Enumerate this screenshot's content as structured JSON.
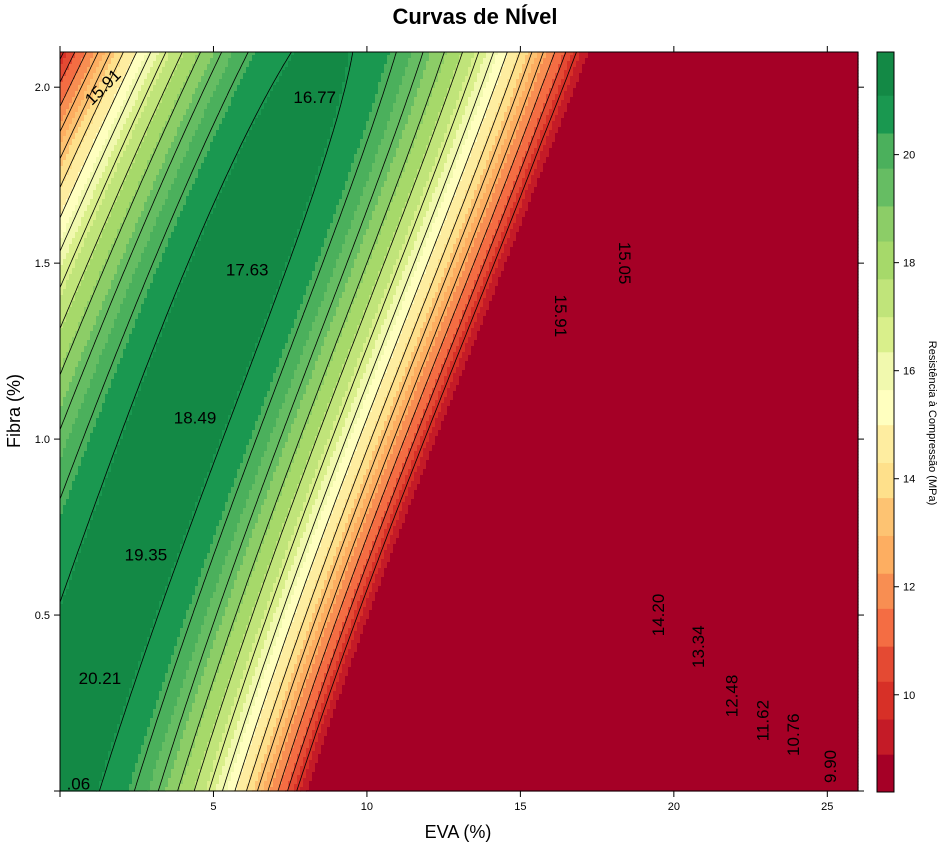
{
  "chart_data": {
    "type": "filled-contour",
    "title": "Curvas de NÍvel",
    "xlabel": "EVA (%)",
    "ylabel": "Fibra (%)",
    "colorbar_label": "Resistência à Compressão (MPa)",
    "xlim": [
      0,
      26
    ],
    "ylim": [
      0,
      2.1
    ],
    "x_ticks": [
      5,
      10,
      15,
      20,
      25
    ],
    "y_ticks": [
      0.5,
      1.0,
      1.5,
      2.0
    ],
    "y_tick_labels": [
      "0.5",
      "1.0",
      "1.5",
      "2.0"
    ],
    "colorbar_range": [
      8.2,
      21.9
    ],
    "colorbar_ticks": [
      10,
      12,
      14,
      16,
      18,
      20
    ],
    "color_levels": [
      8.2,
      8.9,
      9.55,
      10.25,
      10.9,
      11.6,
      12.25,
      12.95,
      13.65,
      14.3,
      15.0,
      15.65,
      16.35,
      17.0,
      17.7,
      18.4,
      19.05,
      19.75,
      20.4,
      21.1,
      21.9
    ],
    "colors": [
      "#a50026",
      "#c41b27",
      "#d73027",
      "#e44a33",
      "#f46d43",
      "#f88e52",
      "#fdae61",
      "#fdc372",
      "#fee08b",
      "#feeda0",
      "#ffffbf",
      "#f1f9ae",
      "#d9ef8b",
      "#c0e47a",
      "#a6d96a",
      "#8ccd67",
      "#66bd63",
      "#4bb05c",
      "#1a9850",
      "#138945",
      "#006837"
    ],
    "contour_levels": [
      9.9,
      10.76,
      11.62,
      12.48,
      13.34,
      14.2,
      15.05,
      15.91,
      16.77,
      17.63,
      18.49,
      19.35,
      20.21,
      21.06
    ],
    "contour_labels": [
      {
        "text": "15.91",
        "x": 1.4,
        "y": 2.0,
        "rotate": -45
      },
      {
        "text": "16.77",
        "x": 8.3,
        "y": 1.97,
        "rotate": 0
      },
      {
        "text": "17.63",
        "x": 6.1,
        "y": 1.48,
        "rotate": 0
      },
      {
        "text": "18.49",
        "x": 4.4,
        "y": 1.06,
        "rotate": 0
      },
      {
        "text": "19.35",
        "x": 2.8,
        "y": 0.67,
        "rotate": 0
      },
      {
        "text": "20.21",
        "x": 1.3,
        "y": 0.32,
        "rotate": 0
      },
      {
        "text": ".06",
        "x": 0.6,
        "y": 0.02,
        "rotate": 0
      },
      {
        "text": "15.91",
        "x": 16.3,
        "y": 1.35,
        "rotate": 90
      },
      {
        "text": "15.05",
        "x": 18.4,
        "y": 1.5,
        "rotate": 90
      },
      {
        "text": "14.20",
        "x": 19.5,
        "y": 0.5,
        "rotate": -90
      },
      {
        "text": "13.34",
        "x": 20.8,
        "y": 0.41,
        "rotate": -90
      },
      {
        "text": "12.48",
        "x": 21.9,
        "y": 0.27,
        "rotate": -90
      },
      {
        "text": "11.62",
        "x": 22.9,
        "y": 0.2,
        "rotate": -90
      },
      {
        "text": "10.76",
        "x": 23.9,
        "y": 0.16,
        "rotate": -90
      },
      {
        "text": "9.90",
        "x": 25.1,
        "y": 0.07,
        "rotate": -90
      }
    ],
    "legend_position": "right",
    "grid": false
  }
}
